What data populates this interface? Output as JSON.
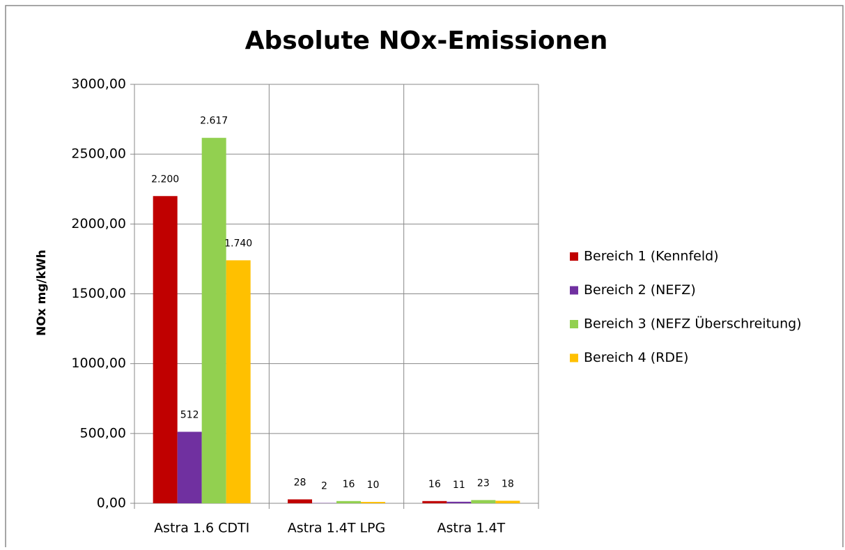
{
  "chart_data": {
    "type": "bar",
    "title": "Absolute NOx-Emissionen",
    "y_label": "NOx mg/kWh",
    "categories": [
      "Astra 1.6 CDTI",
      "Astra 1.4T LPG",
      "Astra 1.4T"
    ],
    "series": [
      {
        "name": "Bereich 1 (Kennfeld)",
        "color": "#c00000",
        "values": [
          2200,
          28,
          16
        ],
        "value_labels": [
          "2.200",
          "28",
          "16"
        ]
      },
      {
        "name": "Bereich 2 (NEFZ)",
        "color": "#7030a0",
        "values": [
          512,
          2,
          11
        ],
        "value_labels": [
          "512",
          "2",
          "11"
        ]
      },
      {
        "name": "Bereich 3 (NEFZ Überschreitung)",
        "color": "#92d050",
        "values": [
          2617,
          16,
          23
        ],
        "value_labels": [
          "2.617",
          "16",
          "23"
        ]
      },
      {
        "name": "Bereich 4 (RDE)",
        "color": "#ffc000",
        "values": [
          1740,
          10,
          18
        ],
        "value_labels": [
          "1.740",
          "10",
          "18"
        ]
      }
    ],
    "ylim": [
      0,
      3000
    ],
    "yticks": [
      {
        "value": 0,
        "label": "0,00"
      },
      {
        "value": 500,
        "label": "500,00"
      },
      {
        "value": 1000,
        "label": "1000,00"
      },
      {
        "value": 1500,
        "label": "1500,00"
      },
      {
        "value": 2000,
        "label": "2000,00"
      },
      {
        "value": 2500,
        "label": "2500,00"
      },
      {
        "value": 3000,
        "label": "3000,00"
      }
    ],
    "grid": true,
    "legend": "right"
  }
}
